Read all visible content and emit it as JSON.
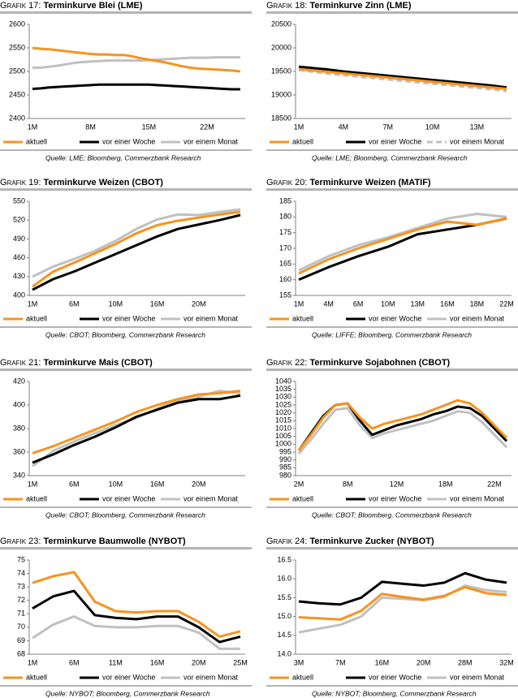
{
  "chart_data": [
    {
      "type": "line",
      "label": "Grafik 17:",
      "title": "Terminkurve Blei (LME)",
      "source": "Quelle: LME; Bloomberg, Commerzbank Research",
      "categories": [
        "1M",
        null,
        null,
        null,
        null,
        null,
        null,
        "8M",
        null,
        null,
        null,
        null,
        null,
        null,
        "15M",
        null,
        null,
        null,
        null,
        null,
        null,
        "22M",
        null,
        null,
        null,
        null
      ],
      "ylim": [
        2400,
        2600
      ],
      "yticks": [
        2400,
        2450,
        2500,
        2550,
        2600
      ],
      "series": [
        {
          "name": "aktuell",
          "color": "#f7931e",
          "values": [
            2550,
            2548,
            2547,
            2545,
            2543,
            2541,
            2539,
            2537,
            2536,
            2536,
            2535,
            2535,
            2532,
            2528,
            2525,
            2522,
            2519,
            2515,
            2511,
            2508,
            2506,
            2505,
            2504,
            2503,
            2502,
            2500
          ]
        },
        {
          "name": "vor einer Woche",
          "color": "#000000",
          "values": [
            2463,
            2464,
            2466,
            2467,
            2468,
            2469,
            2470,
            2471,
            2472,
            2472,
            2472,
            2472,
            2472,
            2472,
            2472,
            2471,
            2470,
            2469,
            2468,
            2467,
            2466,
            2465,
            2464,
            2463,
            2462,
            2462
          ]
        },
        {
          "name": "vor einem Monat",
          "color": "#c0c0c0",
          "values": [
            2508,
            2508,
            2510,
            2512,
            2515,
            2518,
            2520,
            2521,
            2522,
            2523,
            2523,
            2523,
            2523,
            2523,
            2524,
            2525,
            2526,
            2527,
            2528,
            2529,
            2529,
            2529,
            2530,
            2530,
            2530,
            2530
          ]
        }
      ]
    },
    {
      "type": "line",
      "label": "Grafik 18:",
      "title": "Terminkurve Zinn (LME)",
      "source": "Quelle: LME; Bloomberg, Commerzbank Research",
      "categories": [
        "1M",
        null,
        null,
        "4M",
        null,
        null,
        "7M",
        null,
        null,
        "10M",
        null,
        null,
        "13M",
        null,
        null
      ],
      "ylim": [
        18500,
        20500
      ],
      "yticks": [
        18500,
        19000,
        19500,
        20000,
        20500
      ],
      "series": [
        {
          "name": "aktuell",
          "color": "#f7931e",
          "values": [
            19550,
            19520,
            19490,
            19460,
            19430,
            19400,
            19370,
            19340,
            19310,
            19280,
            19250,
            19220,
            19190,
            19160,
            19130
          ]
        },
        {
          "name": "vor einer Woche",
          "color": "#000000",
          "values": [
            19600,
            19570,
            19540,
            19500,
            19470,
            19440,
            19410,
            19380,
            19350,
            19320,
            19290,
            19260,
            19230,
            19200,
            19160
          ]
        },
        {
          "name": "vor einem Monat",
          "color": "#c0c0c0",
          "dashed": true,
          "values": [
            19530,
            19490,
            19450,
            19420,
            19390,
            19360,
            19330,
            19300,
            19270,
            19240,
            19210,
            19180,
            19150,
            19120,
            19080
          ]
        }
      ]
    },
    {
      "type": "line",
      "label": "Grafik 19:",
      "title": "Terminkurve Weizen (CBOT)",
      "source": "Quelle: CBOT; Bloomberg, Commerzbank Research",
      "categories": [
        "1M",
        null,
        "6M",
        null,
        "10M",
        null,
        "16M",
        null,
        "20M",
        null,
        null
      ],
      "ylim": [
        400,
        550
      ],
      "yticks": [
        400,
        430,
        460,
        490,
        520,
        550
      ],
      "series": [
        {
          "name": "aktuell",
          "color": "#f7931e",
          "values": [
            414,
            438,
            452,
            467,
            482,
            499,
            512,
            519,
            524,
            529,
            533
          ]
        },
        {
          "name": "vor einer Woche",
          "color": "#000000",
          "values": [
            409,
            426,
            438,
            452,
            466,
            480,
            494,
            506,
            513,
            520,
            528
          ]
        },
        {
          "name": "vor einem Monat",
          "color": "#c0c0c0",
          "values": [
            430,
            446,
            458,
            471,
            487,
            506,
            521,
            529,
            528,
            533,
            537
          ]
        }
      ]
    },
    {
      "type": "line",
      "label": "Grafik 20:",
      "title": "Terminkurve Weizen (MATIF)",
      "source": "Quelle: LIFFE; Bloomberg, Commerzbank Research",
      "categories": [
        "1M",
        "4M",
        "6M",
        "10M",
        "13M",
        "16M",
        "18M",
        "22M"
      ],
      "ylim": [
        155,
        185
      ],
      "yticks": [
        155,
        160,
        165,
        170,
        175,
        180,
        185
      ],
      "series": [
        {
          "name": "aktuell",
          "color": "#f7931e",
          "values": [
            162,
            166.5,
            170,
            173,
            176,
            178.5,
            177.5,
            179.5
          ]
        },
        {
          "name": "vor einer Woche",
          "color": "#000000",
          "values": [
            160,
            164,
            167.5,
            170.5,
            174.5,
            176,
            177.5,
            179.5
          ]
        },
        {
          "name": "vor einem Monat",
          "color": "#c0c0c0",
          "values": [
            163,
            167.5,
            171,
            173.5,
            176.5,
            179.5,
            181,
            180
          ]
        }
      ]
    },
    {
      "type": "line",
      "label": "Grafik 21:",
      "title": "Terminkurve Mais (CBOT)",
      "source": "Quelle: CBOT; Bloomberg, Commerzbank Research",
      "categories": [
        "1M",
        null,
        "6M",
        null,
        "10M",
        null,
        "16M",
        null,
        "20M",
        null,
        null
      ],
      "ylim": [
        340,
        420
      ],
      "yticks": [
        340,
        360,
        380,
        400,
        420
      ],
      "series": [
        {
          "name": "aktuell",
          "color": "#f7931e",
          "values": [
            359,
            365,
            372,
            379,
            386,
            394,
            400,
            405,
            409,
            410,
            412
          ]
        },
        {
          "name": "vor einer Woche",
          "color": "#000000",
          "values": [
            351,
            358,
            366,
            373,
            381,
            390,
            396,
            402,
            405,
            405,
            408
          ]
        },
        {
          "name": "vor einem Monat",
          "color": "#c0c0c0",
          "values": [
            348,
            361,
            369,
            376,
            383,
            389,
            397,
            404,
            407,
            412,
            410
          ]
        }
      ]
    },
    {
      "type": "line",
      "label": "Grafik 22:",
      "title": "Terminkurve Sojabohnen (CBOT)",
      "source": "Quelle: CBOT; Bloomberg, Commerzbank Research",
      "categories": [
        "2M",
        null,
        null,
        null,
        "8M",
        null,
        null,
        null,
        "12M",
        null,
        null,
        null,
        "18M",
        null,
        null,
        null,
        "22M",
        null
      ],
      "ylim": [
        980,
        1040
      ],
      "yticks": [
        980,
        985,
        990,
        995,
        1000,
        1005,
        1010,
        1015,
        1020,
        1025,
        1030,
        1035,
        1040
      ],
      "series": [
        {
          "name": "aktuell",
          "color": "#f7931e",
          "values": [
            996,
            1006,
            1017,
            1025,
            1026,
            1017,
            1010,
            1013,
            1015,
            1017,
            1019,
            1022,
            1025,
            1028,
            1026,
            1020,
            1012,
            1004
          ]
        },
        {
          "name": "vor einer Woche",
          "color": "#000000",
          "values": [
            996,
            1007,
            1018,
            1025,
            1026,
            1015,
            1006,
            1009,
            1012,
            1014,
            1016,
            1019,
            1021,
            1024,
            1023,
            1018,
            1010,
            1002
          ]
        },
        {
          "name": "vor einem Monat",
          "color": "#c0c0c0",
          "values": [
            994,
            1003,
            1013,
            1022,
            1023,
            1012,
            1004,
            1007,
            1009,
            1011,
            1013,
            1015,
            1018,
            1021,
            1020,
            1014,
            1006,
            998
          ]
        }
      ]
    },
    {
      "type": "line",
      "label": "Grafik 23:",
      "title": "Terminkurve Baumwolle (NYBOT)",
      "source": "Quelle: NYBOT; Bloomberg, Commerzbank Research",
      "categories": [
        "1M",
        null,
        "6M",
        null,
        "11M",
        null,
        "16M",
        null,
        "20M",
        null,
        "25M"
      ],
      "ylim": [
        68,
        75
      ],
      "yticks": [
        68,
        69,
        70,
        71,
        72,
        73,
        74,
        75
      ],
      "series": [
        {
          "name": "aktuell",
          "color": "#f7931e",
          "values": [
            73.3,
            73.8,
            74.1,
            71.9,
            71.2,
            71.1,
            71.2,
            71.2,
            70.4,
            69.3,
            69.7
          ]
        },
        {
          "name": "vor einer Woche",
          "color": "#000000",
          "values": [
            71.4,
            72.3,
            72.7,
            70.9,
            70.7,
            70.6,
            70.8,
            70.8,
            70.0,
            68.9,
            69.3
          ]
        },
        {
          "name": "vor einem Monat",
          "color": "#c0c0c0",
          "values": [
            69.2,
            70.2,
            70.8,
            70.1,
            70.0,
            70.0,
            70.1,
            70.1,
            69.6,
            68.4,
            68.4
          ]
        }
      ]
    },
    {
      "type": "line",
      "label": "Grafik 24:",
      "title": "Terminkurve Zucker (NYBOT)",
      "source": "Quelle: NYBOT; Bloomberg, Commerzbank Research",
      "categories": [
        "3M",
        null,
        "7M",
        null,
        "16M",
        null,
        "20M",
        null,
        "28M",
        null,
        "32M"
      ],
      "ylim": [
        14,
        16.5
      ],
      "yticks": [
        {
          "value": 14,
          "label": "14.0"
        },
        {
          "value": 14.5,
          "label": "14.5"
        },
        {
          "value": 15,
          "label": "15.0"
        },
        {
          "value": 15.5,
          "label": "15.5"
        },
        {
          "value": 16,
          "label": "16.0"
        },
        {
          "value": 16.5,
          "label": "16.5"
        }
      ],
      "series": [
        {
          "name": "aktuell",
          "color": "#f7931e",
          "values": [
            14.98,
            14.95,
            14.92,
            15.15,
            15.6,
            15.52,
            15.45,
            15.55,
            15.78,
            15.62,
            15.57
          ]
        },
        {
          "name": "vor einer Woche",
          "color": "#000000",
          "values": [
            15.4,
            15.35,
            15.32,
            15.5,
            15.92,
            15.87,
            15.82,
            15.9,
            16.15,
            15.98,
            15.9
          ]
        },
        {
          "name": "vor einem Monat",
          "color": "#c0c0c0",
          "values": [
            14.58,
            14.68,
            14.78,
            15.0,
            15.5,
            15.47,
            15.43,
            15.52,
            15.82,
            15.7,
            15.65
          ]
        }
      ]
    }
  ]
}
